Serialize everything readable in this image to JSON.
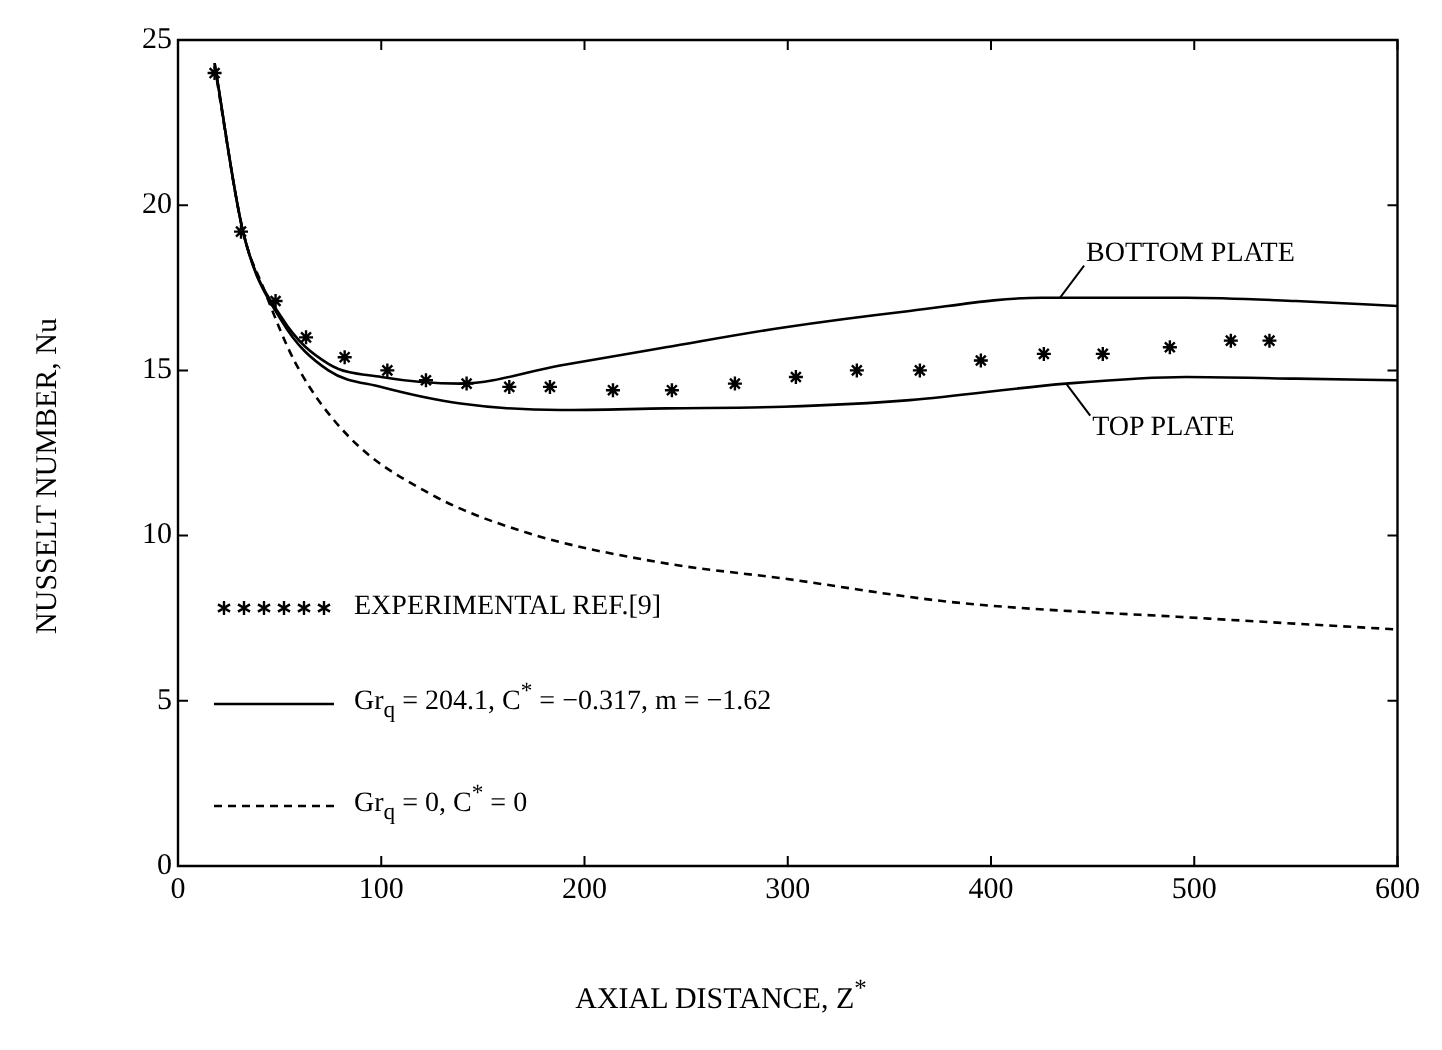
{
  "chart_data": {
    "type": "line",
    "xlabel": "AXIAL DISTANCE,  Z$^{*}$",
    "ylabel": "NUSSELT NUMBER, Nu",
    "xlim": [
      0,
      600
    ],
    "xticks": [
      0,
      100,
      200,
      300,
      400,
      500,
      600
    ],
    "ylim": [
      0,
      25
    ],
    "yticks": [
      0,
      5,
      10,
      15,
      20,
      25
    ],
    "grid": false,
    "legend": "bottom left",
    "series": [
      {
        "name": "EXPERIMENTAL REF.[9]",
        "type": "scatter",
        "marker": "cross",
        "color": "#000000",
        "x": [
          18,
          31,
          48,
          63,
          82,
          103,
          122,
          142,
          163,
          183,
          214,
          243,
          274,
          304,
          334,
          365,
          395,
          426,
          455,
          488,
          518,
          537
        ],
        "values": [
          24.0,
          19.2,
          17.1,
          16.0,
          15.4,
          15.0,
          14.7,
          14.6,
          14.5,
          14.5,
          14.4,
          14.4,
          14.6,
          14.8,
          15.0,
          15.0,
          15.3,
          15.5,
          15.5,
          15.7,
          15.9,
          15.9
        ]
      },
      {
        "name": "Gr$_{q}$ = 204.1, C$^{*}$ = −0.317, m = −1.62",
        "line_style": "solid",
        "marker": "none",
        "color": "#000000",
        "x": [
          18,
          32,
          51,
          74,
          100,
          139,
          188,
          240,
          298,
          360,
          425,
          496,
          550,
          600
        ],
        "values": [
          24.3,
          19.2,
          16.6,
          15.2,
          14.8,
          14.6,
          15.15,
          15.7,
          16.3,
          16.8,
          17.2,
          17.2,
          17.1,
          16.95
        ]
      },
      {
        "line_style": "solid",
        "marker": "none",
        "color": "#000000",
        "x": [
          18,
          32,
          51,
          74,
          100,
          139,
          188,
          240,
          298,
          360,
          437,
          496,
          550,
          600
        ],
        "values": [
          24.3,
          19.2,
          16.5,
          15.0,
          14.5,
          14.0,
          13.8,
          13.85,
          13.9,
          14.1,
          14.6,
          14.8,
          14.75,
          14.7
        ]
      },
      {
        "name": "Gr$_{q}$ = 0, C$^{*}$ = 0",
        "line_style": "dashed",
        "marker": "none",
        "color": "#000000",
        "x": [
          18,
          32,
          42,
          58,
          84,
          123,
          171,
          236,
          298,
          382,
          504,
          600
        ],
        "values": [
          24.2,
          19.2,
          17.5,
          15.2,
          13.0,
          11.3,
          10.1,
          9.2,
          8.7,
          7.98,
          7.5,
          7.16
        ]
      }
    ],
    "annotations": [
      {
        "text": "BOTTOM PLATE",
        "x": 434,
        "y": 17.2
      },
      {
        "text": "TOP PLATE",
        "x": 437,
        "y": 14.6
      }
    ]
  }
}
